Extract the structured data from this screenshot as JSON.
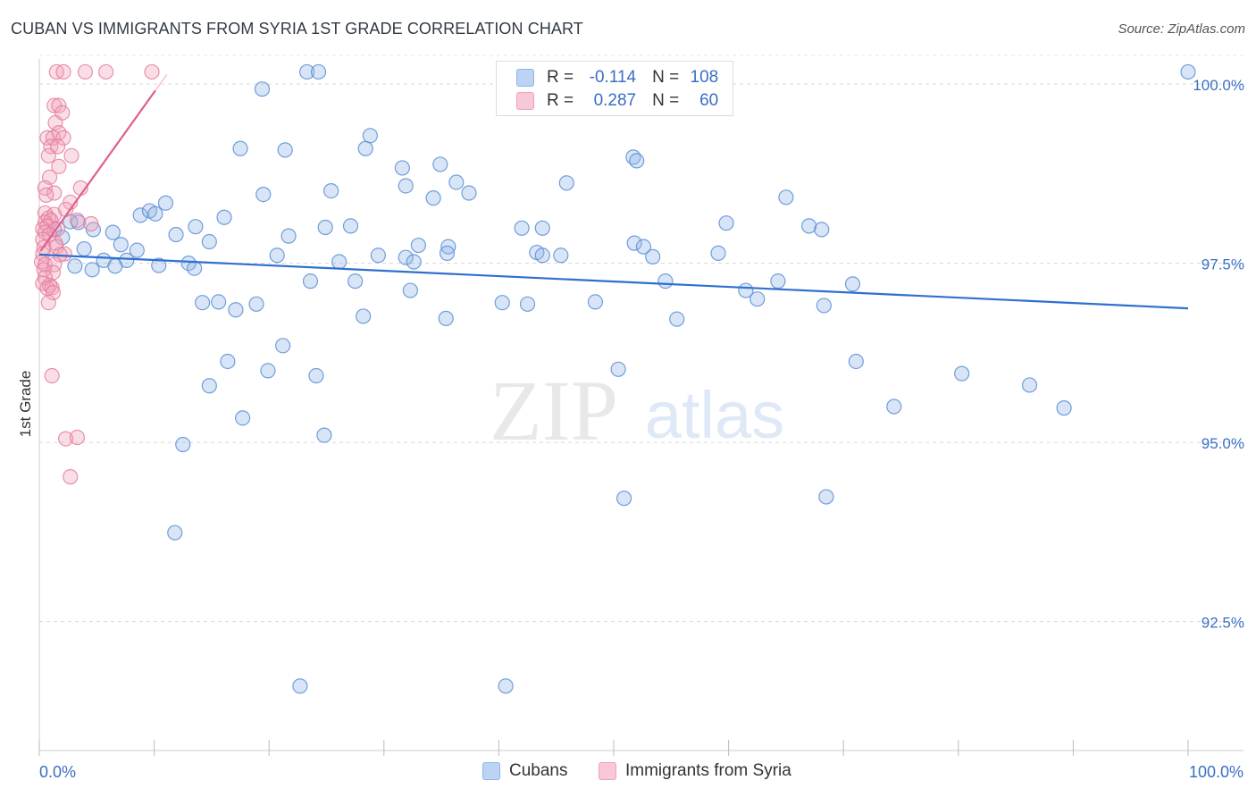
{
  "title": "CUBAN VS IMMIGRANTS FROM SYRIA 1ST GRADE CORRELATION CHART",
  "source": "Source: ZipAtlas.com",
  "watermark": {
    "zip": "ZIP",
    "atlas": "atlas"
  },
  "legend": {
    "rows": [
      {
        "r_label": "R =",
        "r_value": "-0.114",
        "n_label": "N =",
        "n_value": "108",
        "color": "#8fb4e6"
      },
      {
        "r_label": "R =",
        "r_value": "0.287",
        "n_label": "N =",
        "n_value": "60",
        "color": "#f0a0b8"
      }
    ]
  },
  "bottom_legend": {
    "cubans": "Cubans",
    "syria": "Immigrants from Syria"
  },
  "chart_data": {
    "type": "scatter",
    "title": "CUBAN VS IMMIGRANTS FROM SYRIA 1ST GRADE CORRELATION CHART",
    "xlabel": "",
    "ylabel": "1st Grade",
    "xlim": [
      0,
      100
    ],
    "ylim": [
      90.7,
      100.4
    ],
    "x_tick_labels": {
      "left": "0.0%",
      "right": "100.0%"
    },
    "y_ticks": [
      {
        "value": 100.0,
        "label": "100.0%"
      },
      {
        "value": 97.5,
        "label": "97.5%"
      },
      {
        "value": 95.0,
        "label": "95.0%"
      },
      {
        "value": 92.5,
        "label": "92.5%"
      }
    ],
    "grid": true,
    "series": [
      {
        "name": "Cubans",
        "color": "#8fb4e6",
        "stroke": "#5b8ed6",
        "trend": {
          "x": [
            0,
            100
          ],
          "y": [
            97.62,
            96.87
          ],
          "color": "#2f6fcf"
        },
        "points": [
          [
            100,
            100.17
          ],
          [
            23.3,
            100.17
          ],
          [
            24.3,
            100.17
          ],
          [
            19.4,
            99.93
          ],
          [
            17.5,
            99.1
          ],
          [
            21.4,
            99.08
          ],
          [
            28.4,
            99.1
          ],
          [
            28.8,
            99.28
          ],
          [
            31.6,
            98.83
          ],
          [
            31.9,
            98.58
          ],
          [
            34.3,
            98.41
          ],
          [
            34.9,
            98.88
          ],
          [
            36.3,
            98.63
          ],
          [
            37.4,
            98.48
          ],
          [
            45.9,
            98.62
          ],
          [
            51.7,
            98.98
          ],
          [
            52.0,
            98.93
          ],
          [
            65.0,
            98.42
          ],
          [
            19.5,
            98.46
          ],
          [
            25.4,
            98.51
          ],
          [
            11.0,
            98.34
          ],
          [
            16.1,
            98.14
          ],
          [
            8.8,
            98.17
          ],
          [
            9.6,
            98.23
          ],
          [
            10.1,
            98.19
          ],
          [
            13.6,
            98.01
          ],
          [
            11.9,
            97.9
          ],
          [
            4.7,
            97.97
          ],
          [
            6.4,
            97.93
          ],
          [
            2.7,
            98.08
          ],
          [
            3.4,
            98.07
          ],
          [
            1.3,
            97.97
          ],
          [
            2.0,
            97.86
          ],
          [
            14.8,
            97.8
          ],
          [
            21.7,
            97.88
          ],
          [
            24.9,
            98.0
          ],
          [
            27.1,
            98.02
          ],
          [
            33.0,
            97.75
          ],
          [
            35.6,
            97.73
          ],
          [
            42.0,
            97.99
          ],
          [
            43.8,
            97.99
          ],
          [
            51.8,
            97.78
          ],
          [
            52.6,
            97.73
          ],
          [
            59.8,
            98.06
          ],
          [
            67.0,
            98.02
          ],
          [
            68.1,
            97.97
          ],
          [
            3.9,
            97.7
          ],
          [
            7.1,
            97.76
          ],
          [
            8.5,
            97.68
          ],
          [
            5.6,
            97.54
          ],
          [
            7.6,
            97.54
          ],
          [
            10.4,
            97.47
          ],
          [
            20.7,
            97.61
          ],
          [
            26.1,
            97.52
          ],
          [
            29.5,
            97.61
          ],
          [
            31.9,
            97.58
          ],
          [
            32.6,
            97.52
          ],
          [
            35.5,
            97.64
          ],
          [
            43.3,
            97.65
          ],
          [
            43.8,
            97.61
          ],
          [
            45.4,
            97.61
          ],
          [
            53.4,
            97.59
          ],
          [
            59.1,
            97.64
          ],
          [
            3.1,
            97.46
          ],
          [
            6.6,
            97.46
          ],
          [
            4.6,
            97.41
          ],
          [
            13.0,
            97.5
          ],
          [
            13.5,
            97.43
          ],
          [
            23.6,
            97.25
          ],
          [
            27.5,
            97.25
          ],
          [
            32.3,
            97.12
          ],
          [
            54.5,
            97.25
          ],
          [
            61.5,
            97.12
          ],
          [
            62.5,
            97.0
          ],
          [
            64.3,
            97.25
          ],
          [
            70.8,
            97.21
          ],
          [
            14.2,
            96.95
          ],
          [
            15.6,
            96.96
          ],
          [
            17.1,
            96.85
          ],
          [
            18.9,
            96.93
          ],
          [
            28.2,
            96.76
          ],
          [
            35.4,
            96.73
          ],
          [
            40.3,
            96.95
          ],
          [
            42.5,
            96.93
          ],
          [
            48.4,
            96.96
          ],
          [
            68.3,
            96.91
          ],
          [
            55.5,
            96.72
          ],
          [
            21.2,
            96.35
          ],
          [
            16.4,
            96.13
          ],
          [
            19.9,
            96.0
          ],
          [
            24.1,
            95.93
          ],
          [
            14.8,
            95.79
          ],
          [
            50.4,
            96.02
          ],
          [
            80.3,
            95.96
          ],
          [
            71.1,
            96.13
          ],
          [
            86.2,
            95.8
          ],
          [
            89.2,
            95.48
          ],
          [
            74.4,
            95.5
          ],
          [
            17.7,
            95.34
          ],
          [
            24.8,
            95.1
          ],
          [
            12.5,
            94.97
          ],
          [
            50.9,
            94.22
          ],
          [
            68.5,
            94.24
          ],
          [
            11.8,
            93.74
          ],
          [
            22.7,
            91.6
          ],
          [
            40.6,
            91.6
          ]
        ]
      },
      {
        "name": "Immigrants from Syria",
        "color": "#f0a0b8",
        "stroke": "#e57fa0",
        "trend": {
          "x": [
            0.1,
            10.1
          ],
          "y": [
            97.67,
            99.91
          ],
          "color": "#e0608a"
        },
        "points": [
          [
            1.5,
            100.17
          ],
          [
            2.1,
            100.17
          ],
          [
            4.0,
            100.17
          ],
          [
            5.8,
            100.17
          ],
          [
            9.8,
            100.17
          ],
          [
            1.3,
            99.7
          ],
          [
            1.7,
            99.7
          ],
          [
            2.0,
            99.6
          ],
          [
            1.4,
            99.46
          ],
          [
            1.7,
            99.32
          ],
          [
            0.7,
            99.25
          ],
          [
            1.2,
            99.25
          ],
          [
            2.1,
            99.25
          ],
          [
            1.0,
            99.13
          ],
          [
            1.6,
            99.13
          ],
          [
            0.8,
            99.0
          ],
          [
            2.8,
            99.0
          ],
          [
            1.7,
            98.85
          ],
          [
            0.9,
            98.7
          ],
          [
            0.5,
            98.55
          ],
          [
            1.3,
            98.48
          ],
          [
            3.6,
            98.55
          ],
          [
            0.6,
            98.45
          ],
          [
            2.7,
            98.35
          ],
          [
            0.5,
            98.2
          ],
          [
            1.3,
            98.18
          ],
          [
            2.3,
            98.25
          ],
          [
            0.8,
            98.13
          ],
          [
            1.0,
            98.1
          ],
          [
            3.3,
            98.1
          ],
          [
            4.5,
            98.05
          ],
          [
            0.5,
            98.07
          ],
          [
            0.7,
            98.02
          ],
          [
            1.6,
            97.98
          ],
          [
            0.3,
            97.98
          ],
          [
            0.5,
            97.93
          ],
          [
            0.9,
            97.9
          ],
          [
            0.3,
            97.83
          ],
          [
            1.4,
            97.78
          ],
          [
            0.4,
            97.72
          ],
          [
            1.5,
            97.73
          ],
          [
            0.3,
            97.63
          ],
          [
            2.2,
            97.63
          ],
          [
            0.2,
            97.52
          ],
          [
            0.5,
            97.48
          ],
          [
            1.3,
            97.48
          ],
          [
            0.4,
            97.41
          ],
          [
            1.2,
            97.37
          ],
          [
            0.5,
            97.3
          ],
          [
            0.3,
            97.22
          ],
          [
            0.9,
            97.19
          ],
          [
            1.1,
            97.16
          ],
          [
            0.7,
            97.15
          ],
          [
            1.2,
            97.09
          ],
          [
            0.8,
            96.95
          ],
          [
            1.1,
            95.93
          ],
          [
            2.3,
            95.05
          ],
          [
            3.3,
            95.07
          ],
          [
            2.7,
            94.52
          ],
          [
            1.8,
            97.62
          ]
        ]
      }
    ]
  }
}
